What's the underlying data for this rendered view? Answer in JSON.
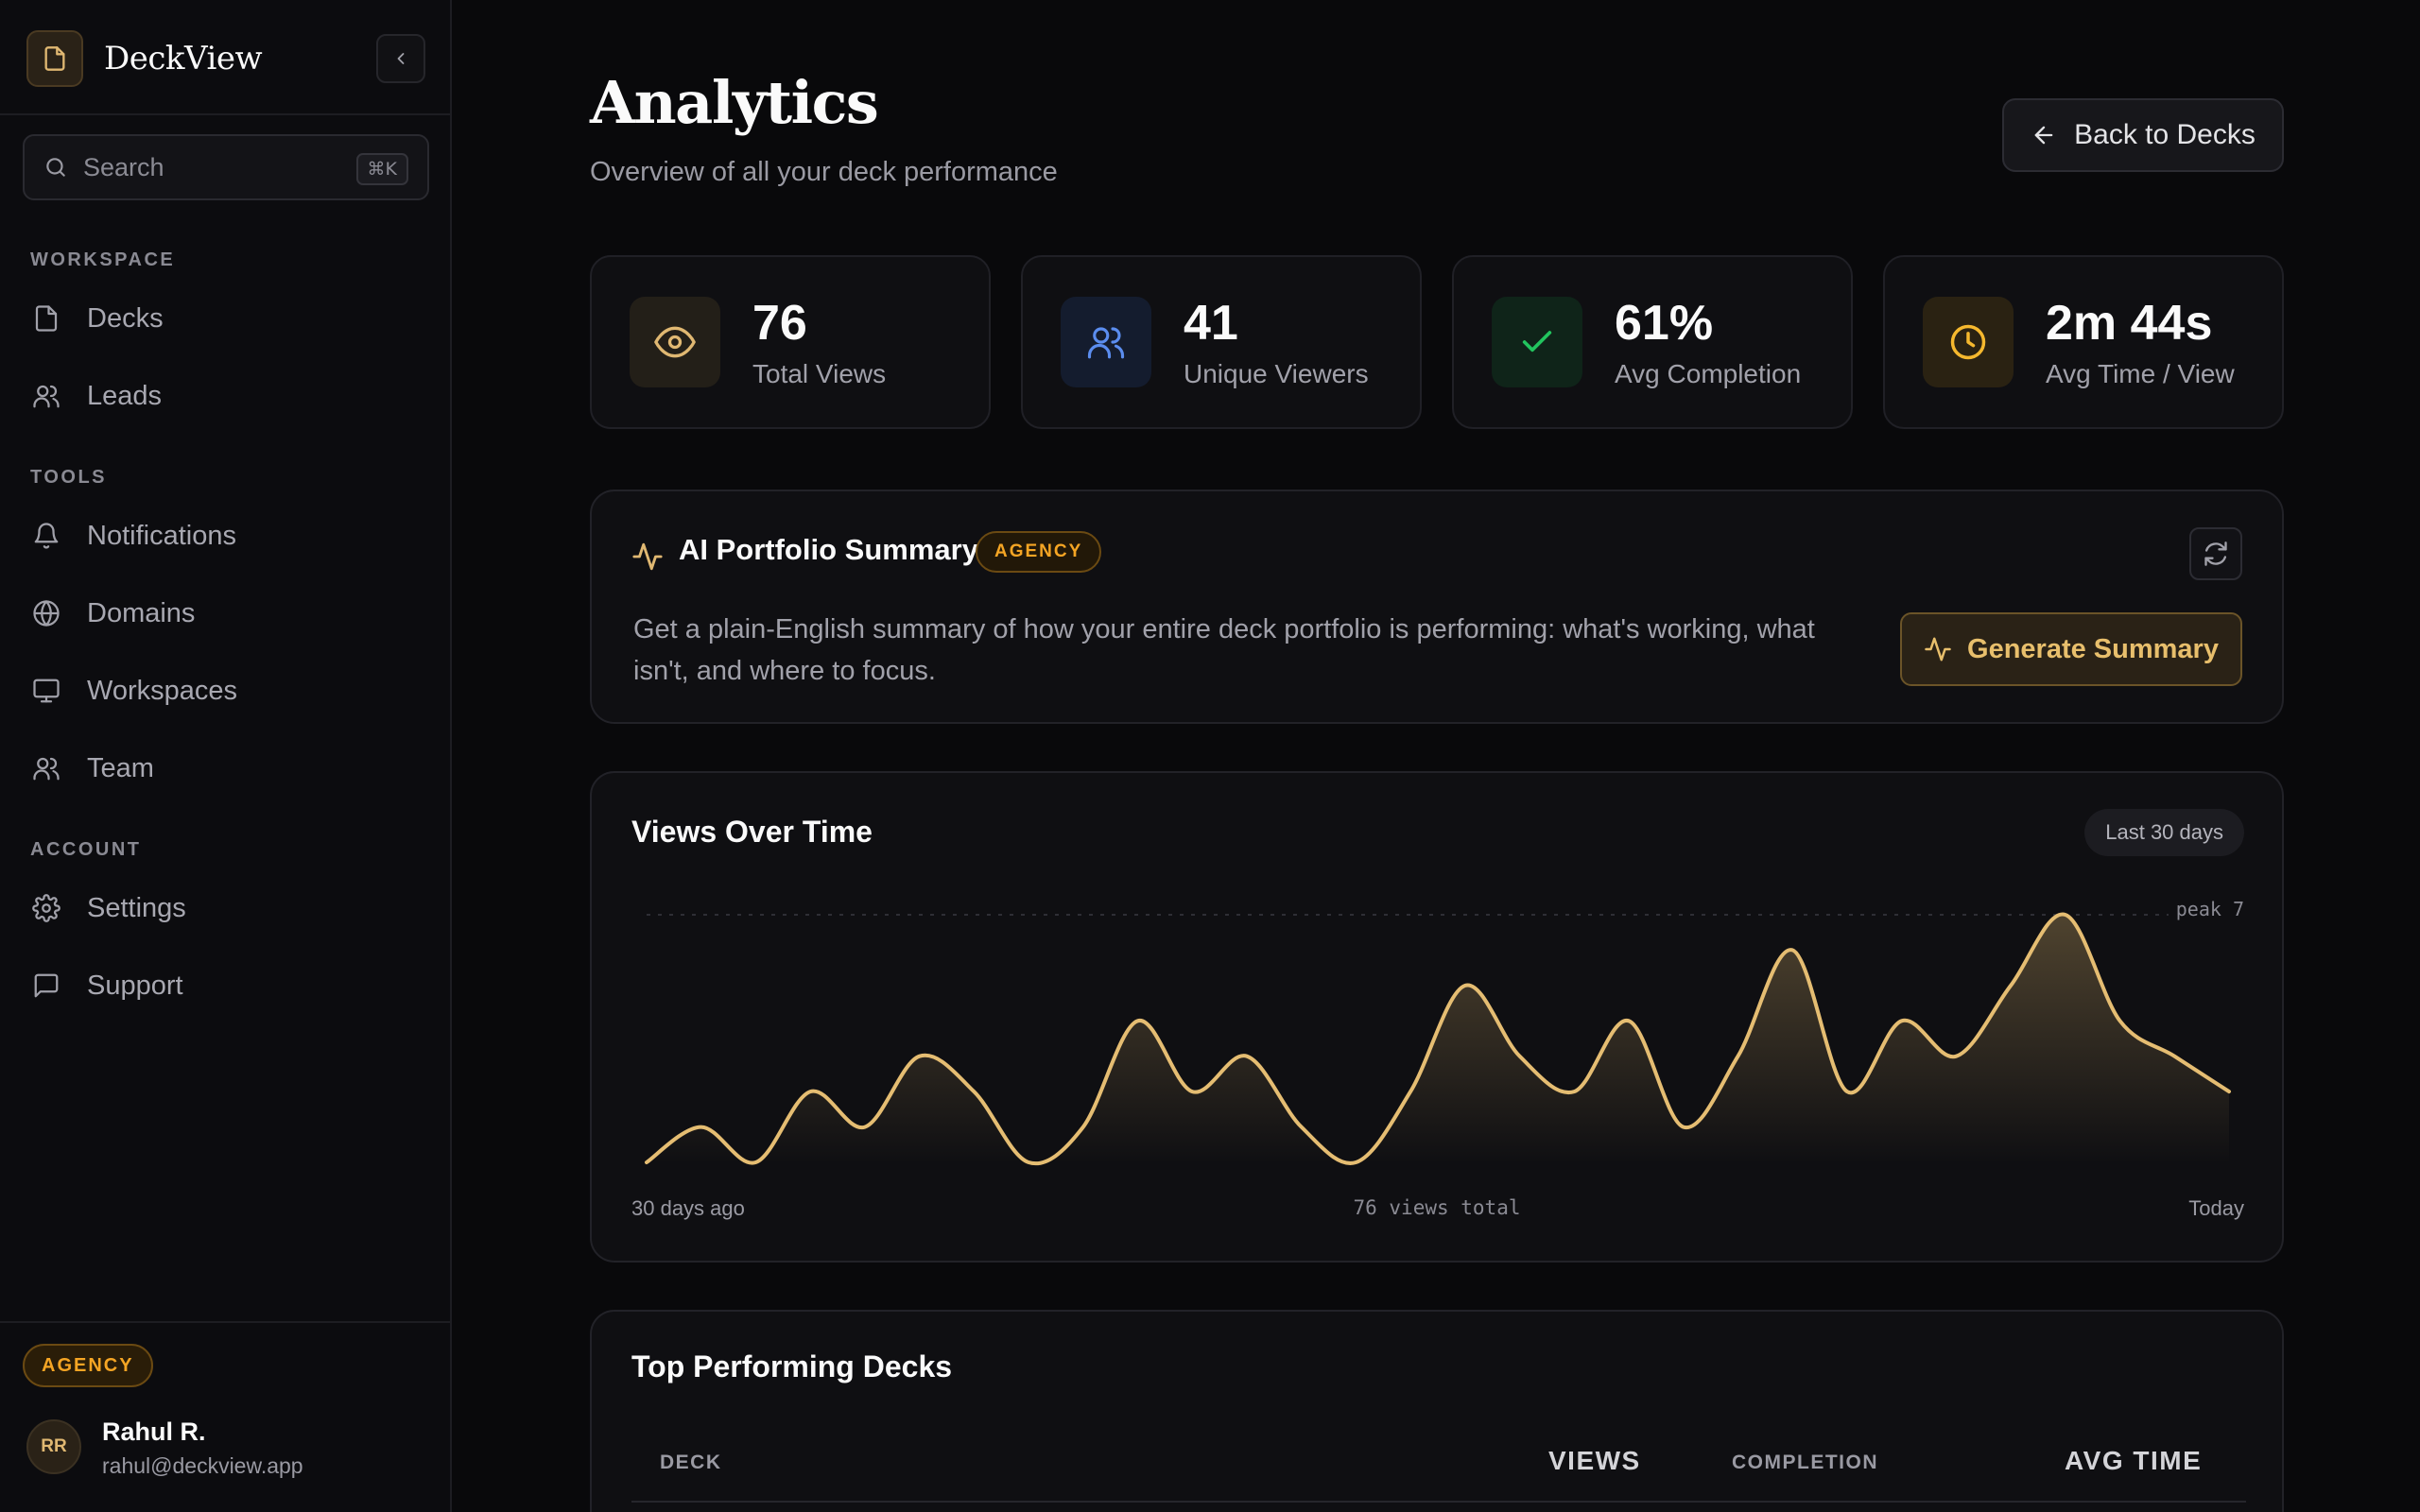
{
  "sidebar": {
    "brand": "DeckView",
    "search_placeholder": "Search",
    "search_shortcut": "⌘K",
    "sections": [
      {
        "label": "WORKSPACE",
        "items": [
          {
            "label": "Decks",
            "icon": "file-icon"
          },
          {
            "label": "Leads",
            "icon": "users-icon"
          }
        ]
      },
      {
        "label": "TOOLS",
        "items": [
          {
            "label": "Notifications",
            "icon": "bell-icon"
          },
          {
            "label": "Domains",
            "icon": "globe-icon"
          },
          {
            "label": "Workspaces",
            "icon": "monitor-icon"
          },
          {
            "label": "Team",
            "icon": "users-icon"
          }
        ]
      },
      {
        "label": "ACCOUNT",
        "items": [
          {
            "label": "Settings",
            "icon": "gear-icon"
          },
          {
            "label": "Support",
            "icon": "message-icon"
          }
        ]
      }
    ],
    "plan_badge": "AGENCY",
    "user": {
      "initials": "RR",
      "name": "Rahul R.",
      "email": "rahul@deckview.app"
    }
  },
  "header": {
    "title": "Analytics",
    "subtitle": "Overview of all your deck performance",
    "back_label": "Back to Decks"
  },
  "stats": [
    {
      "value": "76",
      "label": "Total Views",
      "icon": "eye-icon",
      "color": "#e0b872",
      "bg": "#231f18"
    },
    {
      "value": "41",
      "label": "Unique Viewers",
      "icon": "users-icon",
      "color": "#5b8def",
      "bg": "#141c2e"
    },
    {
      "value": "61%",
      "label": "Avg Completion",
      "icon": "check-icon",
      "color": "#22c55e",
      "bg": "#0f2419"
    },
    {
      "value": "2m 44s",
      "label": "Avg Time / View",
      "icon": "clock-icon",
      "color": "#f5b82e",
      "bg": "#2a2212"
    }
  ],
  "ai_summary": {
    "title": "AI Portfolio Summary",
    "badge": "AGENCY",
    "description": "Get a plain-English summary of how your entire deck portfolio is performing: what's working, what isn't, and where to focus.",
    "button_label": "Generate Summary"
  },
  "views_chart": {
    "title": "Views Over Time",
    "range": "Last 30 days",
    "peak_label": "peak 7",
    "x_start": "30 days ago",
    "x_center": "76 views total",
    "x_end": "Today"
  },
  "chart_data": {
    "type": "area",
    "title": "Views Over Time",
    "x_labels": [
      "30 days ago",
      "Today"
    ],
    "values": [
      0,
      1,
      0,
      2,
      1,
      3,
      2,
      0,
      1,
      4,
      2,
      3,
      1,
      0,
      2,
      5,
      3,
      2,
      4,
      1,
      3,
      6,
      2,
      4,
      3,
      5,
      7,
      4,
      3,
      2
    ],
    "ylim": [
      0,
      7
    ],
    "color": "#e5bd72"
  },
  "top_decks": {
    "title": "Top Performing Decks",
    "columns": [
      "DECK",
      "VIEWS",
      "COMPLETION",
      "AVG TIME"
    ]
  }
}
